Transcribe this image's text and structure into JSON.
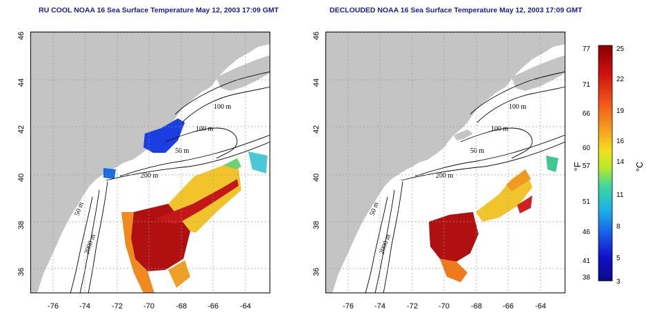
{
  "panels": [
    {
      "title": "RU COOL NOAA 16 Sea Surface Temperature May 12, 2003 17:09 GMT",
      "contour_labels": [
        "100 m",
        "100 m",
        "50 m",
        "200 m",
        "50 m",
        "2000 m"
      ]
    },
    {
      "title": "DECLOUDED NOAA 16 Sea Surface Temperature May 12, 2003 17:09 GMT",
      "contour_labels": [
        "100 m",
        "100 m",
        "50 m",
        "200 m",
        "50 m",
        "2000 m"
      ]
    }
  ],
  "axes": {
    "lon_ticks": [
      "-76",
      "-74",
      "-72",
      "-70",
      "-68",
      "-66",
      "-64"
    ],
    "lat_ticks": [
      "36",
      "38",
      "40",
      "42",
      "44",
      "46"
    ]
  },
  "colorbar": {
    "fahrenheit_label": "°F",
    "celsius_label": "°C",
    "fahrenheit_ticks": [
      "77",
      "71",
      "66",
      "60",
      "57",
      "51",
      "46",
      "41",
      "38"
    ],
    "celsius_ticks": [
      "25",
      "22",
      "19",
      "16",
      "14",
      "11",
      "8",
      "5",
      "3"
    ],
    "colors": [
      "#8b0000",
      "#d01010",
      "#f05a1a",
      "#f5a020",
      "#f2e020",
      "#b4ea2a",
      "#3ed6a0",
      "#1ab0e8",
      "#1a5ce6",
      "#1010c8",
      "#0a0a8a"
    ]
  },
  "colors": {
    "land": "#c4c4c4",
    "title": "#1a1a9a",
    "grid": "#999999"
  }
}
